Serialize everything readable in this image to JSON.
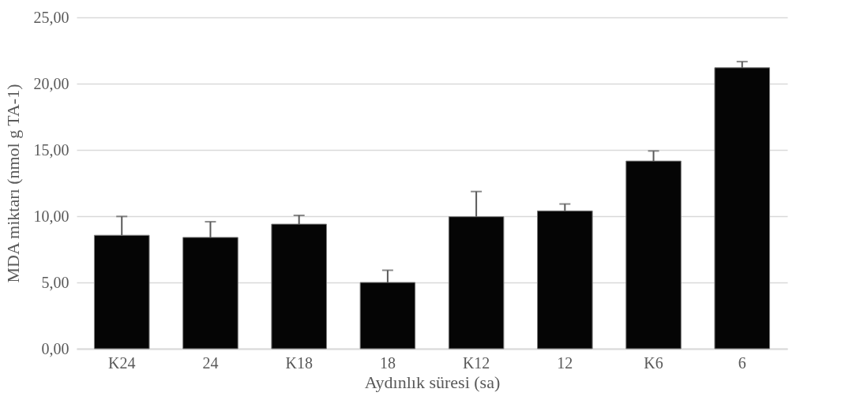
{
  "chart_data": {
    "type": "bar",
    "xlabel": "Aydınlık süresi (sa)",
    "ylabel": "MDA miktarı (nmol g TA-1)",
    "categories": [
      "K24",
      "24",
      "K18",
      "18",
      "K12",
      "12",
      "K6",
      "6"
    ],
    "values": [
      8.56,
      8.4,
      9.4,
      5.0,
      9.96,
      10.4,
      14.16,
      21.2
    ],
    "errors": [
      [
        8.56,
        9.98
      ],
      [
        8.4,
        9.58
      ],
      [
        9.4,
        10.06
      ],
      [
        5.0,
        5.92
      ],
      [
        9.96,
        11.86
      ],
      [
        10.4,
        10.92
      ],
      [
        14.16,
        14.92
      ],
      [
        21.2,
        21.66
      ]
    ],
    "color": "#050505",
    "ylim": [
      0,
      25
    ],
    "yticks": [
      {
        "value": 0,
        "label": "0,00"
      },
      {
        "value": 5,
        "label": "5,00"
      },
      {
        "value": 10,
        "label": "10,00"
      },
      {
        "value": 15,
        "label": "15,00"
      },
      {
        "value": 20,
        "label": "20,00"
      },
      {
        "value": 25,
        "label": "25,00"
      }
    ],
    "grid": "y"
  }
}
